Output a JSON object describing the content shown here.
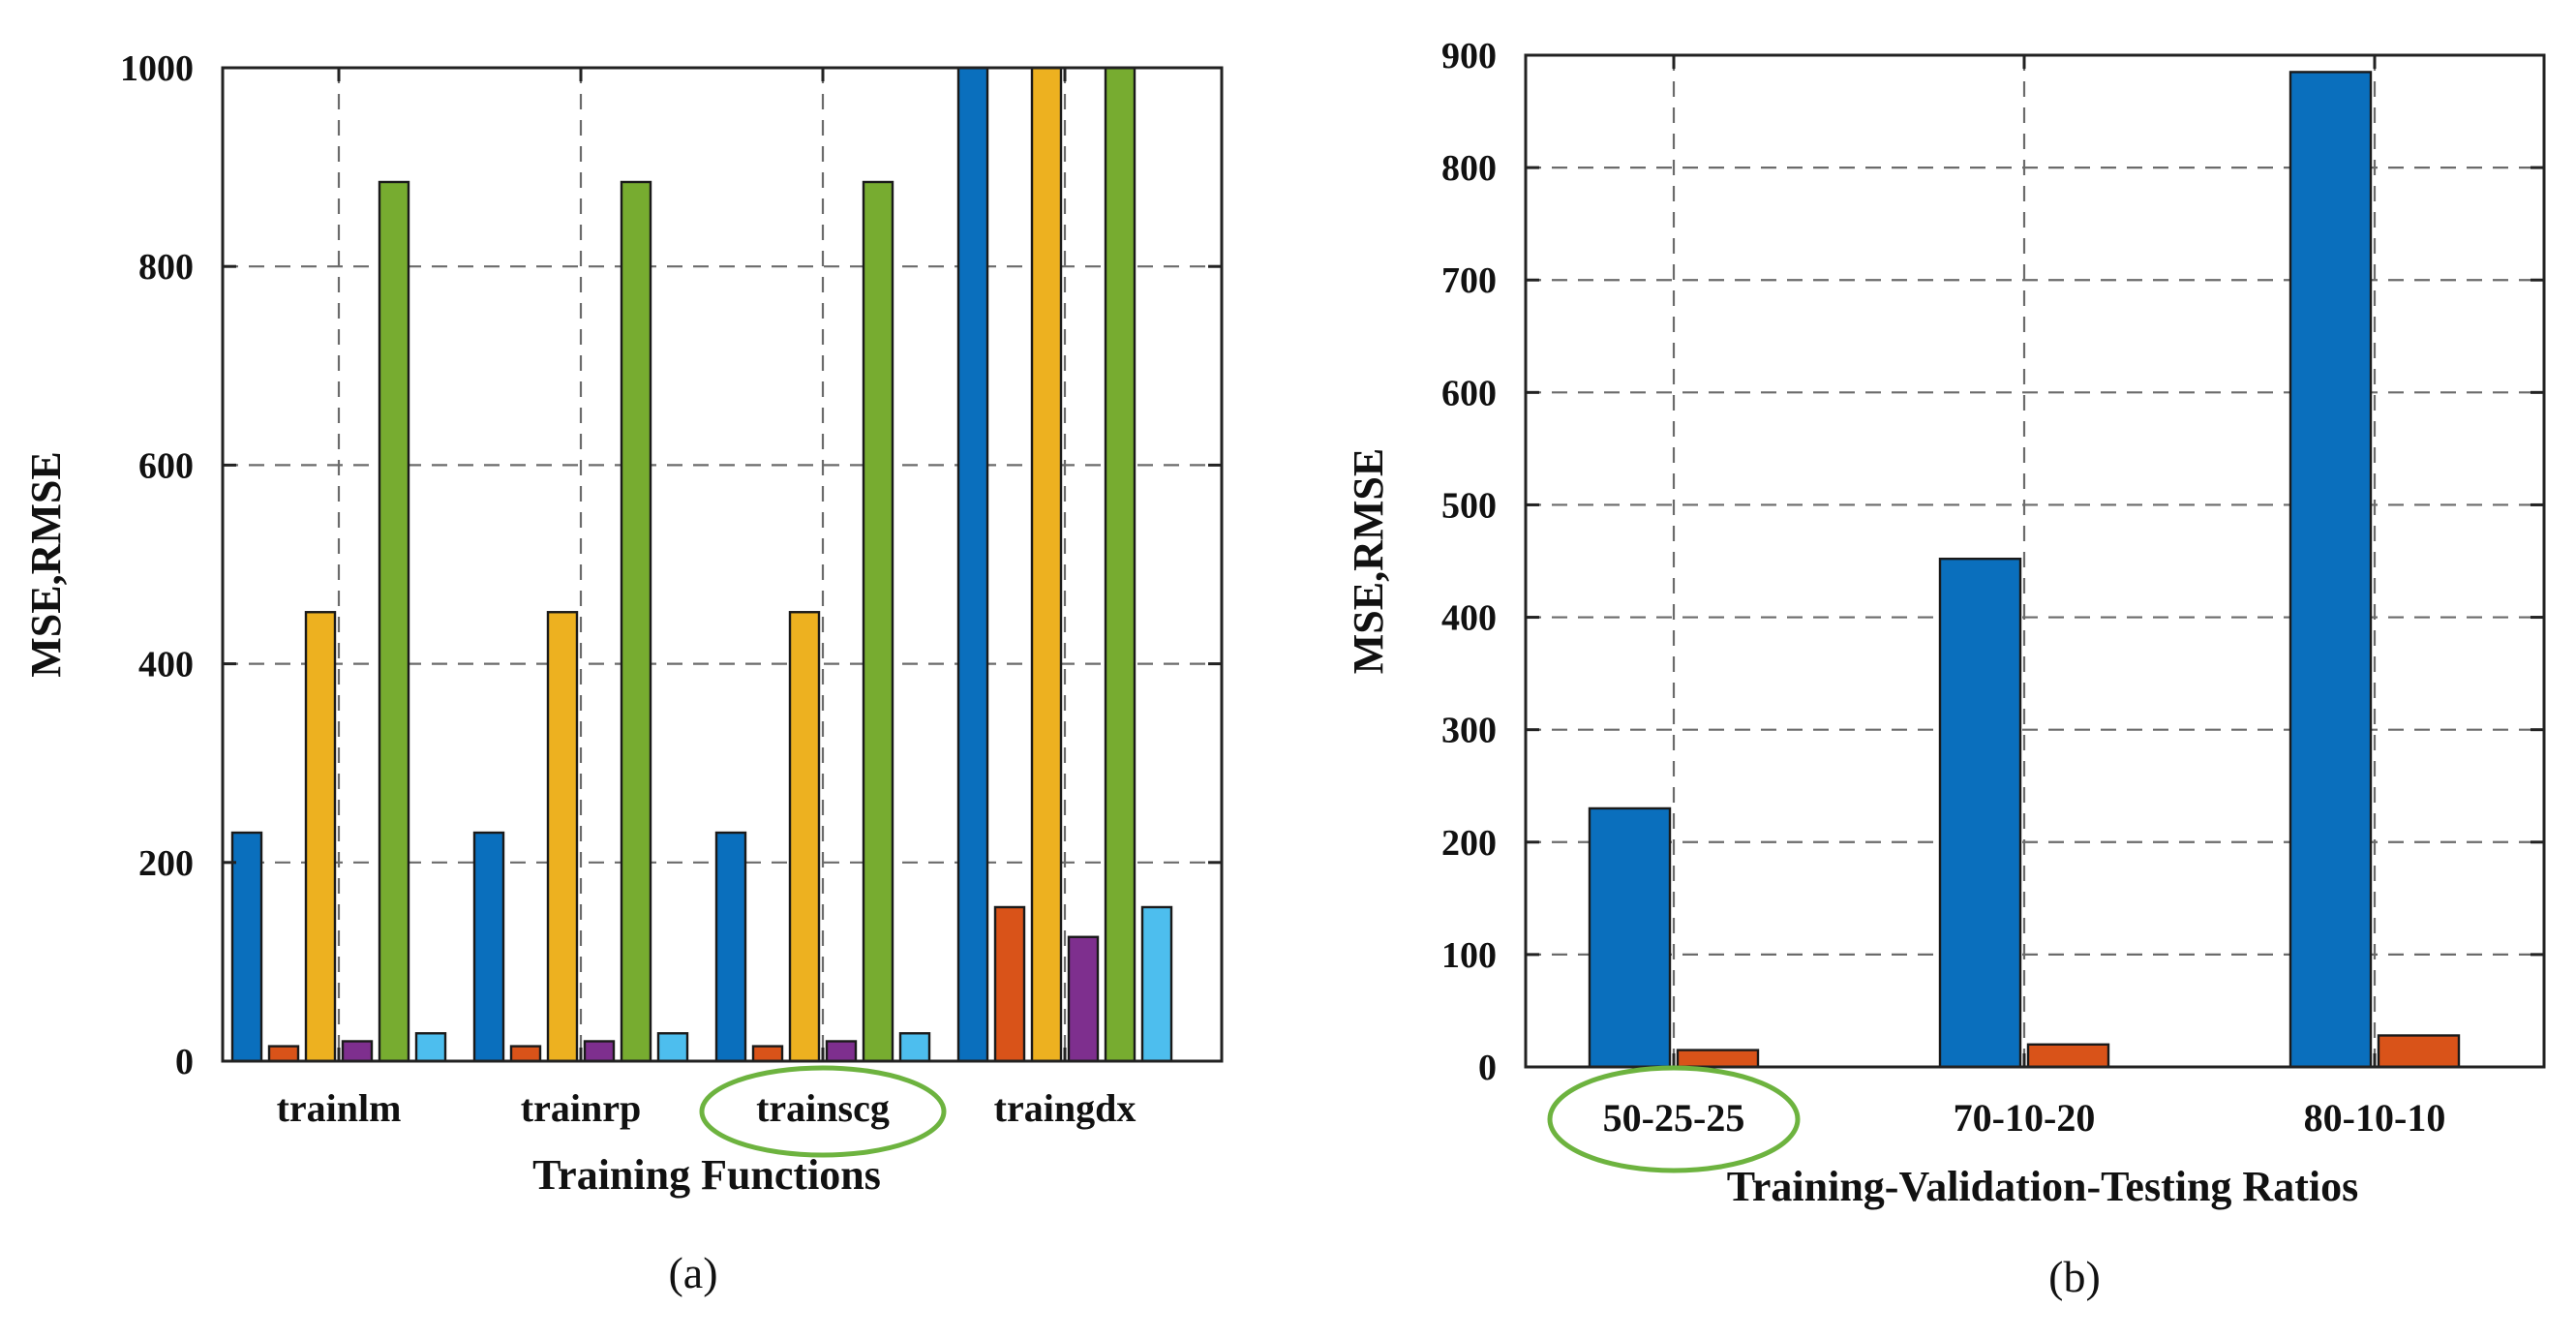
{
  "chart_data": [
    {
      "type": "bar",
      "panel": "a",
      "caption": "(a)",
      "xlabel": "Training Functions",
      "ylabel": "MSE,RMSE",
      "ylim": [
        0,
        1000
      ],
      "yticks": [
        "0",
        "200",
        "400",
        "600",
        "800",
        "1000"
      ],
      "grid": true,
      "categories": [
        "trainlm",
        "trainrp",
        "trainscg",
        "traingdx"
      ],
      "highlighted_category": "trainscg",
      "series": [
        {
          "name": "series-1",
          "color": "#0a6fbd",
          "values": [
            230,
            230,
            230,
            1000
          ]
        },
        {
          "name": "series-2",
          "color": "#d95319",
          "values": [
            15,
            15,
            15,
            155
          ]
        },
        {
          "name": "series-3",
          "color": "#edb120",
          "values": [
            452,
            452,
            452,
            1000
          ]
        },
        {
          "name": "series-4",
          "color": "#7e2f8e",
          "values": [
            20,
            20,
            20,
            125
          ]
        },
        {
          "name": "series-5",
          "color": "#77ac30",
          "values": [
            885,
            885,
            885,
            1000
          ]
        },
        {
          "name": "series-6",
          "color": "#4dbeee",
          "values": [
            28,
            28,
            28,
            155
          ]
        }
      ]
    },
    {
      "type": "bar",
      "panel": "b",
      "caption": "(b)",
      "xlabel": "Training-Validation-Testing Ratios",
      "ylabel": "MSE,RMSE",
      "ylim": [
        0,
        900
      ],
      "yticks": [
        "0",
        "100",
        "200",
        "300",
        "400",
        "500",
        "600",
        "700",
        "800",
        "900"
      ],
      "grid": true,
      "categories": [
        "50-25-25",
        "70-10-20",
        "80-10-10"
      ],
      "highlighted_category": "50-25-25",
      "series": [
        {
          "name": "series-1",
          "color": "#0a6fbd",
          "values": [
            230,
            452,
            885
          ]
        },
        {
          "name": "series-2",
          "color": "#d95319",
          "values": [
            15,
            20,
            28
          ]
        }
      ]
    }
  ]
}
